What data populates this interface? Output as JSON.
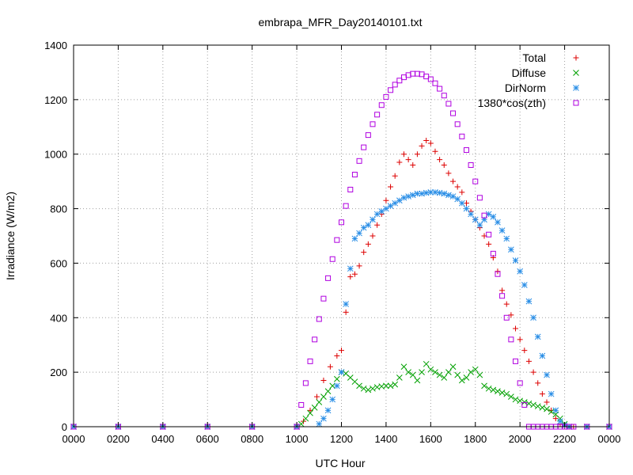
{
  "chart_data": {
    "type": "scatter",
    "title": "embrapa_MFR_Day20140101.txt",
    "xlabel": "UTC Hour",
    "ylabel": "Irradiance (W/m2)",
    "xlim": [
      0,
      24
    ],
    "ylim": [
      0,
      1400
    ],
    "grid": true,
    "legend_position": "top-right",
    "x_ticks": [
      {
        "value": 0,
        "label": "0000"
      },
      {
        "value": 2,
        "label": "0200"
      },
      {
        "value": 4,
        "label": "0400"
      },
      {
        "value": 6,
        "label": "0600"
      },
      {
        "value": 8,
        "label": "0800"
      },
      {
        "value": 10,
        "label": "1000"
      },
      {
        "value": 12,
        "label": "1200"
      },
      {
        "value": 14,
        "label": "1400"
      },
      {
        "value": 16,
        "label": "1600"
      },
      {
        "value": 18,
        "label": "1800"
      },
      {
        "value": 20,
        "label": "2000"
      },
      {
        "value": 22,
        "label": "2200"
      },
      {
        "value": 24,
        "label": "0000"
      }
    ],
    "y_ticks": [
      0,
      200,
      400,
      600,
      800,
      1000,
      1200,
      1400
    ],
    "series": [
      {
        "name": "Total",
        "marker": "plus",
        "color": "#dd0000",
        "x": [
          0,
          2,
          4,
          6,
          8,
          10,
          10.3,
          10.6,
          10.9,
          11.2,
          11.5,
          11.8,
          12.0,
          12.2,
          12.4,
          12.6,
          12.8,
          13.0,
          13.2,
          13.4,
          13.6,
          13.8,
          14.0,
          14.2,
          14.4,
          14.6,
          14.8,
          15.0,
          15.2,
          15.4,
          15.6,
          15.8,
          16.0,
          16.2,
          16.4,
          16.6,
          16.8,
          17.0,
          17.2,
          17.4,
          17.6,
          17.8,
          18.0,
          18.2,
          18.4,
          18.6,
          18.8,
          19.0,
          19.2,
          19.4,
          19.6,
          19.8,
          20.0,
          20.2,
          20.4,
          20.6,
          20.8,
          21.0,
          21.2,
          21.4,
          21.6,
          21.8,
          22.0,
          22.2,
          22.4,
          23,
          24
        ],
        "y": [
          0,
          0,
          0,
          0,
          0,
          0,
          20,
          60,
          110,
          170,
          220,
          260,
          280,
          420,
          550,
          560,
          590,
          640,
          670,
          700,
          740,
          780,
          830,
          880,
          920,
          970,
          1000,
          980,
          960,
          1000,
          1030,
          1050,
          1040,
          1010,
          980,
          960,
          930,
          900,
          880,
          860,
          820,
          790,
          760,
          730,
          700,
          670,
          620,
          570,
          500,
          450,
          410,
          360,
          320,
          280,
          240,
          200,
          160,
          120,
          90,
          60,
          30,
          10,
          0,
          0,
          0,
          0,
          0
        ]
      },
      {
        "name": "Diffuse",
        "marker": "cross",
        "color": "#00a000",
        "x": [
          0,
          2,
          4,
          6,
          8,
          10,
          10.2,
          10.4,
          10.6,
          10.8,
          11.0,
          11.2,
          11.4,
          11.6,
          11.8,
          12.0,
          12.2,
          12.4,
          12.6,
          12.8,
          13.0,
          13.2,
          13.4,
          13.6,
          13.8,
          14.0,
          14.2,
          14.4,
          14.6,
          14.8,
          15.0,
          15.2,
          15.4,
          15.6,
          15.8,
          16.0,
          16.2,
          16.4,
          16.6,
          16.8,
          17.0,
          17.2,
          17.4,
          17.6,
          17.8,
          18.0,
          18.2,
          18.4,
          18.6,
          18.8,
          19.0,
          19.2,
          19.4,
          19.6,
          19.8,
          20.0,
          20.2,
          20.4,
          20.6,
          20.8,
          21.0,
          21.2,
          21.4,
          21.6,
          21.8,
          22.0,
          22.2,
          23,
          24
        ],
        "y": [
          0,
          0,
          0,
          0,
          0,
          0,
          10,
          30,
          50,
          70,
          90,
          110,
          130,
          150,
          175,
          200,
          195,
          180,
          165,
          150,
          140,
          135,
          140,
          145,
          148,
          150,
          150,
          155,
          180,
          220,
          200,
          190,
          170,
          200,
          230,
          210,
          200,
          190,
          180,
          200,
          220,
          190,
          170,
          180,
          200,
          210,
          190,
          150,
          140,
          135,
          130,
          125,
          120,
          110,
          100,
          95,
          90,
          85,
          80,
          75,
          70,
          65,
          55,
          45,
          30,
          10,
          0,
          0,
          0
        ]
      },
      {
        "name": "DirNorm",
        "marker": "star",
        "color": "#2a8ee6",
        "x": [
          0,
          2,
          4,
          6,
          8,
          10,
          11.0,
          11.2,
          11.4,
          11.6,
          11.8,
          12.0,
          12.2,
          12.4,
          12.6,
          12.8,
          13.0,
          13.2,
          13.4,
          13.6,
          13.8,
          14.0,
          14.2,
          14.4,
          14.6,
          14.8,
          15.0,
          15.2,
          15.4,
          15.6,
          15.8,
          16.0,
          16.2,
          16.4,
          16.6,
          16.8,
          17.0,
          17.2,
          17.4,
          17.6,
          17.8,
          18.0,
          18.2,
          18.4,
          18.6,
          18.8,
          19.0,
          19.2,
          19.4,
          19.6,
          19.8,
          20.0,
          20.2,
          20.4,
          20.6,
          20.8,
          21.0,
          21.2,
          21.4,
          21.6,
          21.8,
          22.0,
          22.2,
          23,
          24
        ],
        "y": [
          0,
          0,
          0,
          0,
          0,
          0,
          10,
          30,
          60,
          100,
          150,
          200,
          450,
          580,
          690,
          710,
          730,
          740,
          760,
          780,
          790,
          800,
          810,
          820,
          830,
          840,
          845,
          850,
          855,
          855,
          858,
          860,
          860,
          858,
          855,
          850,
          845,
          835,
          820,
          800,
          780,
          760,
          740,
          760,
          780,
          770,
          750,
          720,
          690,
          650,
          610,
          570,
          520,
          460,
          400,
          330,
          260,
          190,
          120,
          60,
          20,
          5,
          0,
          0,
          0
        ]
      },
      {
        "name": "1380*cos(zth)",
        "marker": "square",
        "color": "#b000e0",
        "x": [
          0,
          2,
          4,
          6,
          8,
          10,
          10.2,
          10.4,
          10.6,
          10.8,
          11.0,
          11.2,
          11.4,
          11.6,
          11.8,
          12.0,
          12.2,
          12.4,
          12.6,
          12.8,
          13.0,
          13.2,
          13.4,
          13.6,
          13.8,
          14.0,
          14.2,
          14.4,
          14.6,
          14.8,
          15.0,
          15.2,
          15.4,
          15.6,
          15.8,
          16.0,
          16.2,
          16.4,
          16.6,
          16.8,
          17.0,
          17.2,
          17.4,
          17.6,
          17.8,
          18.0,
          18.2,
          18.4,
          18.6,
          18.8,
          19.0,
          19.2,
          19.4,
          19.6,
          19.8,
          20.0,
          20.2,
          20.4,
          20.6,
          20.8,
          21.0,
          21.2,
          21.4,
          21.6,
          21.8,
          22.0,
          22.2,
          22.4,
          23,
          24
        ],
        "y": [
          0,
          0,
          0,
          0,
          0,
          0,
          80,
          160,
          240,
          320,
          395,
          470,
          545,
          615,
          685,
          750,
          810,
          870,
          925,
          975,
          1025,
          1070,
          1110,
          1145,
          1180,
          1210,
          1235,
          1255,
          1270,
          1282,
          1290,
          1295,
          1295,
          1293,
          1285,
          1275,
          1260,
          1240,
          1215,
          1185,
          1150,
          1110,
          1065,
          1015,
          960,
          900,
          840,
          775,
          705,
          635,
          560,
          480,
          400,
          320,
          240,
          160,
          80,
          0,
          0,
          0,
          0,
          0,
          0,
          0,
          0,
          0,
          0,
          0,
          0,
          0
        ]
      }
    ]
  }
}
